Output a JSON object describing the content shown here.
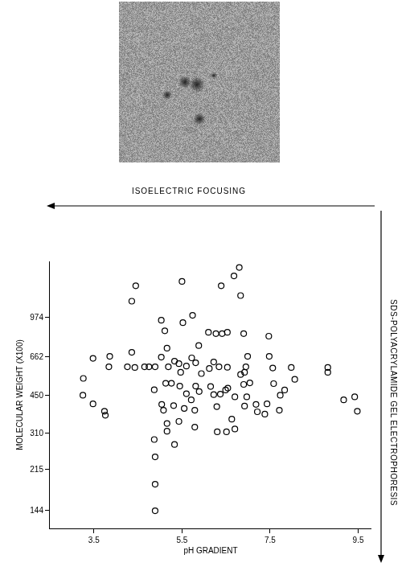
{
  "chart_data": {
    "type": "scatter",
    "xlabel": "pH GRADIENT",
    "ylabel": "MOLECULAR WEIGHT (X100)",
    "annotations": [
      "ISOELECTRIC FOCUSING",
      "SDS-POLYACRYLAMIDE GEL ELECTROPHORESIS"
    ],
    "x": [
      6.8,
      6.68,
      6.83,
      6.39,
      5.5,
      4.45,
      4.36,
      5.03,
      5.11,
      5.52,
      5.74,
      6.1,
      6.27,
      6.41,
      6.53,
      6.9,
      6.99,
      7.47,
      7.48,
      3.86,
      3.48,
      3.84,
      3.26,
      4.26,
      4.36,
      4.43,
      4.65,
      4.75,
      4.89,
      5.03,
      5.16,
      5.19,
      5.33,
      5.43,
      5.6,
      5.47,
      5.72,
      5.81,
      5.88,
      5.94,
      6.12,
      6.22,
      6.34,
      6.53,
      6.95,
      6.92,
      7.56,
      7.98,
      8.81,
      8.81,
      8.06,
      7.58,
      6.83,
      6.9,
      7.04,
      4.87,
      5.13,
      5.26,
      5.45,
      5.81,
      5.89,
      6.15,
      6.54,
      5.04,
      5.08,
      5.31,
      5.6,
      5.71,
      5.55,
      5.79,
      6.22,
      6.37,
      6.49,
      6.97,
      6.92,
      7.18,
      7.43,
      7.73,
      7.83,
      6.7,
      6.29,
      7.21,
      7.71,
      7.38,
      3.74,
      3.76,
      3.25,
      3.48,
      5.16,
      5.16,
      5.33,
      5.43,
      5.79,
      6.3,
      6.51,
      6.7,
      6.63,
      4.89,
      4.89,
      9.17,
      9.42,
      9.48,
      4.87,
      4.89
    ],
    "y": [
      1600,
      1472,
      1211,
      1334,
      1393,
      1334,
      1145,
      948,
      853,
      925,
      995,
      841,
      830,
      830,
      841,
      830,
      662,
      809,
      662,
      662,
      649,
      597,
      532,
      597,
      689,
      593,
      597,
      597,
      597,
      657,
      718,
      597,
      631,
      616,
      601,
      565,
      652,
      621,
      737,
      558,
      587,
      626,
      597,
      594,
      597,
      565,
      590,
      593,
      593,
      565,
      527,
      505,
      553,
      501,
      509,
      475,
      507,
      507,
      493,
      493,
      467,
      491,
      483,
      411,
      388,
      406,
      457,
      430,
      395,
      388,
      453,
      455,
      474,
      443,
      404,
      411,
      413,
      450,
      474,
      443,
      402,
      382,
      388,
      373,
      384,
      369,
      450,
      413,
      340,
      315,
      276,
      347,
      328,
      313,
      313,
      322,
      355,
      186,
      143,
      430,
      443,
      384,
      290,
      244
    ],
    "xlim": [
      2.5,
      9.8
    ],
    "ylim": [
      120,
      1700
    ],
    "xticks": [
      3.5,
      5.5,
      7.5,
      9.5
    ],
    "yticks": [
      144,
      215,
      310,
      450,
      662,
      974
    ],
    "log": "y",
    "grid": false,
    "marker": "circle-open",
    "color": "#000000"
  }
}
